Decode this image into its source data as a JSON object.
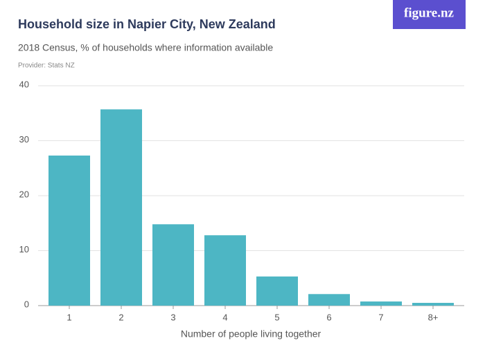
{
  "logo": "figure.nz",
  "chart_data": {
    "type": "bar",
    "title": "Household size in Napier City, New Zealand",
    "subtitle": "2018 Census, % of households where information available",
    "provider": "Provider: Stats NZ",
    "x_label": "Number of people living together",
    "categories": [
      "1",
      "2",
      "3",
      "4",
      "5",
      "6",
      "7",
      "8+"
    ],
    "values": [
      27.3,
      35.7,
      14.8,
      12.8,
      5.3,
      2.1,
      0.75,
      0.5
    ],
    "color": "#4db6c4",
    "ylim": [
      0,
      40
    ],
    "yticks": [
      0,
      10,
      20,
      30,
      40
    ],
    "grid": true
  }
}
